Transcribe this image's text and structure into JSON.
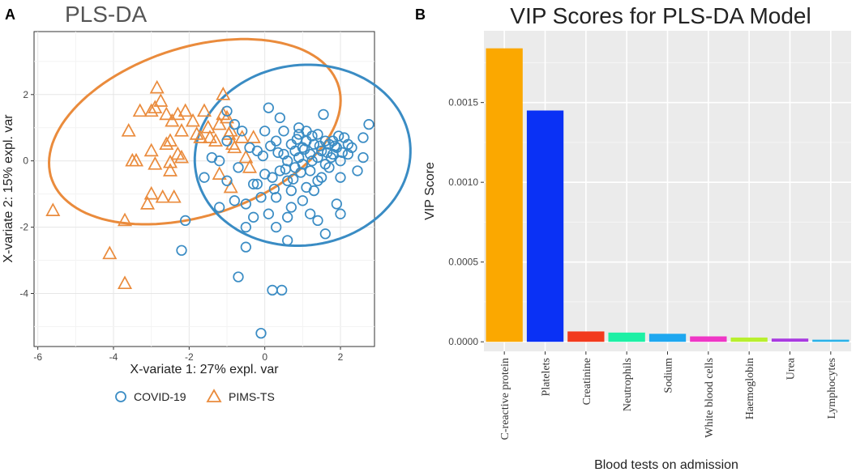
{
  "chart_data": [
    {
      "panel": "A",
      "type": "scatter",
      "title": "PLS-DA",
      "xlabel": "X-variate 1: 27% expl. var",
      "ylabel": "X-variate 2: 15% expl. var",
      "xlim": [
        -6.1,
        2.9
      ],
      "ylim": [
        -5.6,
        3.9
      ],
      "xticks": [
        -6,
        -4,
        -2,
        0,
        2
      ],
      "yticks": [
        2,
        0,
        -2,
        -4
      ],
      "grid": true,
      "legend_position": "bottom",
      "colors": {
        "COVID-19": "#3a8cc4",
        "PIMS-TS": "#ea8b3c"
      },
      "legend": [
        "COVID-19",
        "PIMS-TS"
      ],
      "ellipses": [
        {
          "group": "PIMS-TS",
          "center": [
            -1.85,
            0.88
          ],
          "rx": 4.05,
          "ry": 2.5,
          "angle_deg": 23
        },
        {
          "group": "COVID-19",
          "center": [
            1.0,
            0.17
          ],
          "rx": 2.88,
          "ry": 2.7,
          "angle_deg": 24
        }
      ],
      "series": [
        {
          "name": "PIMS-TS",
          "marker": "triangle",
          "points": [
            [
              -5.6,
              -1.5
            ],
            [
              -4.1,
              -2.8
            ],
            [
              -3.7,
              -3.7
            ],
            [
              -3.7,
              -1.8
            ],
            [
              -3.6,
              0.9
            ],
            [
              -3.5,
              0
            ],
            [
              -3.4,
              0
            ],
            [
              -3.3,
              1.5
            ],
            [
              -3.0,
              1.5
            ],
            [
              -2.9,
              1.6
            ],
            [
              -2.85,
              2.2
            ],
            [
              -2.75,
              1.8
            ],
            [
              -2.6,
              1.4
            ],
            [
              -2.45,
              1.2
            ],
            [
              -3.0,
              0.3
            ],
            [
              -2.9,
              -0.1
            ],
            [
              -2.6,
              0.5
            ],
            [
              -2.5,
              0.6
            ],
            [
              -2.3,
              1.4
            ],
            [
              -2.2,
              0.9
            ],
            [
              -2.1,
              1.5
            ],
            [
              -1.9,
              1.2
            ],
            [
              -1.8,
              0.8
            ],
            [
              -1.7,
              0.7
            ],
            [
              -1.6,
              1.5
            ],
            [
              -1.5,
              1.0
            ],
            [
              -1.45,
              0.7
            ],
            [
              -1.3,
              0.6
            ],
            [
              -1.2,
              1.1
            ],
            [
              -1.1,
              2.0
            ],
            [
              -1.1,
              1.4
            ],
            [
              -1.0,
              1.3
            ],
            [
              -0.95,
              0.8
            ],
            [
              -0.9,
              0.9
            ],
            [
              -0.85,
              0.5
            ],
            [
              -0.8,
              0.4
            ],
            [
              -0.6,
              0.7
            ],
            [
              -0.5,
              0.1
            ],
            [
              -0.3,
              0.7
            ],
            [
              -2.5,
              -0.3
            ],
            [
              -2.3,
              0.2
            ],
            [
              -2.2,
              0.1
            ],
            [
              -3.0,
              -1.0
            ],
            [
              -3.1,
              -1.3
            ],
            [
              -2.7,
              -1.1
            ],
            [
              -1.2,
              -0.4
            ],
            [
              -0.9,
              -0.8
            ],
            [
              -0.4,
              -0.2
            ],
            [
              -2.4,
              -1.1
            ],
            [
              -2.5,
              -0.05
            ]
          ]
        },
        {
          "name": "COVID-19",
          "marker": "circle",
          "points": [
            [
              -0.1,
              -5.2
            ],
            [
              0.2,
              -3.9
            ],
            [
              0.45,
              -3.9
            ],
            [
              -0.7,
              -3.5
            ],
            [
              -2.2,
              -2.7
            ],
            [
              -2.1,
              -1.8
            ],
            [
              -0.5,
              -2.6
            ],
            [
              -0.5,
              -2.0
            ],
            [
              -1.2,
              -1.4
            ],
            [
              -1.6,
              -0.5
            ],
            [
              -1.4,
              0.1
            ],
            [
              -1.2,
              0
            ],
            [
              -1.0,
              0.6
            ],
            [
              -1.0,
              1.5
            ],
            [
              -0.8,
              1.1
            ],
            [
              -0.6,
              0.9
            ],
            [
              -0.4,
              0.4
            ],
            [
              0.1,
              1.6
            ],
            [
              0.4,
              1.3
            ],
            [
              0.3,
              0.6
            ],
            [
              0.5,
              0.2
            ],
            [
              0.7,
              0.5
            ],
            [
              0.8,
              0.3
            ],
            [
              0.9,
              0.8
            ],
            [
              1.0,
              0.4
            ],
            [
              1.1,
              0.6
            ],
            [
              1.2,
              0.2
            ],
            [
              1.3,
              0.5
            ],
            [
              1.4,
              0.8
            ],
            [
              1.5,
              0.3
            ],
            [
              1.6,
              0.6
            ],
            [
              1.7,
              0.5
            ],
            [
              1.8,
              0.2
            ],
            [
              1.9,
              0.4
            ],
            [
              2.0,
              0.0
            ],
            [
              2.1,
              0.7
            ],
            [
              2.2,
              0.5
            ],
            [
              2.3,
              0.4
            ],
            [
              2.6,
              0.7
            ],
            [
              2.75,
              1.1
            ],
            [
              2.6,
              0.1
            ],
            [
              2.0,
              -0.5
            ],
            [
              1.4,
              -0.6
            ],
            [
              1.2,
              -0.3
            ],
            [
              1.0,
              -0.1
            ],
            [
              0.9,
              0.1
            ],
            [
              0.8,
              -0.2
            ],
            [
              0.6,
              0.0
            ],
            [
              0.4,
              -0.3
            ],
            [
              0.2,
              -0.5
            ],
            [
              0.0,
              -0.4
            ],
            [
              -0.1,
              -1.1
            ],
            [
              -0.3,
              -0.7
            ],
            [
              -0.5,
              -1.3
            ],
            [
              -0.3,
              -1.7
            ],
            [
              0.1,
              -1.6
            ],
            [
              0.3,
              -2.0
            ],
            [
              0.6,
              -1.7
            ],
            [
              0.7,
              -1.4
            ],
            [
              1.0,
              -1.2
            ],
            [
              1.2,
              -1.6
            ],
            [
              1.4,
              -1.8
            ],
            [
              1.6,
              -2.2
            ],
            [
              1.9,
              -1.3
            ],
            [
              2.0,
              -1.6
            ],
            [
              0.6,
              -2.4
            ],
            [
              1.1,
              -0.8
            ],
            [
              1.3,
              -0.9
            ],
            [
              1.5,
              -0.5
            ],
            [
              1.7,
              -0.2
            ],
            [
              1.8,
              0.6
            ],
            [
              1.55,
              1.4
            ],
            [
              1.1,
              0.9
            ],
            [
              0.9,
              1.0
            ],
            [
              0.5,
              0.9
            ],
            [
              0.0,
              0.9
            ],
            [
              -0.2,
              0.3
            ],
            [
              -0.7,
              -0.2
            ],
            [
              -1.0,
              -0.6
            ],
            [
              -0.8,
              -1.2
            ],
            [
              -0.2,
              -0.7
            ],
            [
              0.3,
              -1.1
            ],
            [
              0.6,
              -0.6
            ],
            [
              0.7,
              -0.9
            ],
            [
              1.25,
              0.0
            ],
            [
              1.4,
              0.1
            ],
            [
              1.6,
              -0.1
            ],
            [
              1.75,
              0.1
            ],
            [
              1.95,
              0.75
            ],
            [
              2.2,
              0.2
            ],
            [
              2.45,
              -0.3
            ],
            [
              0.85,
              0.65
            ],
            [
              1.05,
              0.35
            ],
            [
              1.25,
              0.75
            ],
            [
              1.45,
              0.45
            ],
            [
              1.65,
              0.25
            ],
            [
              1.85,
              0.45
            ],
            [
              2.05,
              0.25
            ],
            [
              0.95,
              -0.35
            ],
            [
              0.75,
              -0.55
            ],
            [
              0.55,
              -0.25
            ],
            [
              0.35,
              0.25
            ],
            [
              0.15,
              0.45
            ],
            [
              -0.05,
              0.15
            ],
            [
              0.25,
              -0.85
            ]
          ]
        }
      ]
    },
    {
      "panel": "B",
      "type": "bar",
      "title": "VIP Scores for PLS-DA Model",
      "xlabel": "Blood tests on admission",
      "ylabel": "VIP Score",
      "ylim": [
        -6e-05,
        0.00195
      ],
      "yticks": [
        0.0,
        0.0005,
        0.001,
        0.0015
      ],
      "ytick_labels": [
        "0.0000",
        "0.0005",
        "0.0010",
        "0.0015"
      ],
      "grid": true,
      "categories": [
        "C-reactive protein",
        "Platelets",
        "Creatinine",
        "Neutrophils",
        "Sodium",
        "White blood cells",
        "Haemoglobin",
        "Urea",
        "Lymphocytes"
      ],
      "values": [
        0.00184,
        0.00145,
        6.5e-05,
        5.8e-05,
        5e-05,
        3.4e-05,
        2.7e-05,
        2e-05,
        1.3e-05
      ],
      "bar_colors": [
        "#fba800",
        "#0a31f5",
        "#f23a1d",
        "#1df0a5",
        "#1ea7f0",
        "#ef37c6",
        "#b8ef2e",
        "#a93be0",
        "#29b1e8"
      ]
    }
  ],
  "panel_labels": {
    "a": "A",
    "b": "B"
  }
}
